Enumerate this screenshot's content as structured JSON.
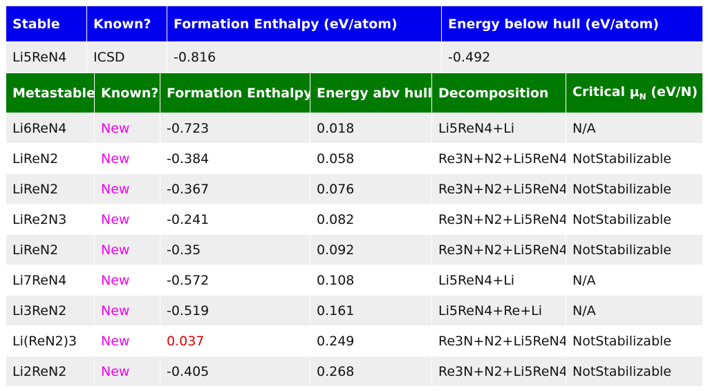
{
  "colors": {
    "stable_header": "#0000ee",
    "meta_header": "#007a00",
    "new_text": "#ee00ee",
    "highlight_value": "#dd0000"
  },
  "stable": {
    "headers": [
      "Stable",
      "Known?",
      "Formation Enthalpy (eV/atom)",
      "Energy below hull (eV/atom)"
    ],
    "row": {
      "name": "Li5ReN4",
      "known": "ICSD",
      "enthalpy": "-0.816",
      "hull": "-0.492"
    }
  },
  "metastable": {
    "headers": {
      "name": "Metastable",
      "known": "Known?",
      "enthalpy": "Formation Enthalpy",
      "hull": "Energy abv hull",
      "decomp": "Decomposition",
      "mu_prefix": "Critical μ",
      "mu_sub": "N",
      "mu_suffix": " (eV/N)"
    },
    "rows": [
      {
        "name": "Li6ReN4",
        "known": "New",
        "enthalpy": "-0.723",
        "hull": "0.018",
        "decomp": "Li5ReN4+Li",
        "mu": "N/A"
      },
      {
        "name": "LiReN2",
        "known": "New",
        "enthalpy": "-0.384",
        "hull": "0.058",
        "decomp": "Re3N+N2+Li5ReN4",
        "mu": "NotStabilizable"
      },
      {
        "name": "LiReN2",
        "known": "New",
        "enthalpy": "-0.367",
        "hull": "0.076",
        "decomp": "Re3N+N2+Li5ReN4",
        "mu": "NotStabilizable"
      },
      {
        "name": "LiRe2N3",
        "known": "New",
        "enthalpy": "-0.241",
        "hull": "0.082",
        "decomp": "Re3N+N2+Li5ReN4",
        "mu": "NotStabilizable"
      },
      {
        "name": "LiReN2",
        "known": "New",
        "enthalpy": "-0.35",
        "hull": "0.092",
        "decomp": "Re3N+N2+Li5ReN4",
        "mu": "NotStabilizable"
      },
      {
        "name": "Li7ReN4",
        "known": "New",
        "enthalpy": "-0.572",
        "hull": "0.108",
        "decomp": "Li5ReN4+Li",
        "mu": "N/A"
      },
      {
        "name": "Li3ReN2",
        "known": "New",
        "enthalpy": "-0.519",
        "hull": "0.161",
        "decomp": "Li5ReN4+Re+Li",
        "mu": "N/A"
      },
      {
        "name": "Li(ReN2)3",
        "known": "New",
        "enthalpy": "0.037",
        "hull": "0.249",
        "decomp": "Re3N+N2+Li5ReN4",
        "mu": "NotStabilizable",
        "enthalpy_highlight": true
      },
      {
        "name": "Li2ReN2",
        "known": "New",
        "enthalpy": "-0.405",
        "hull": "0.268",
        "decomp": "Re3N+N2+Li5ReN4",
        "mu": "NotStabilizable"
      }
    ]
  }
}
